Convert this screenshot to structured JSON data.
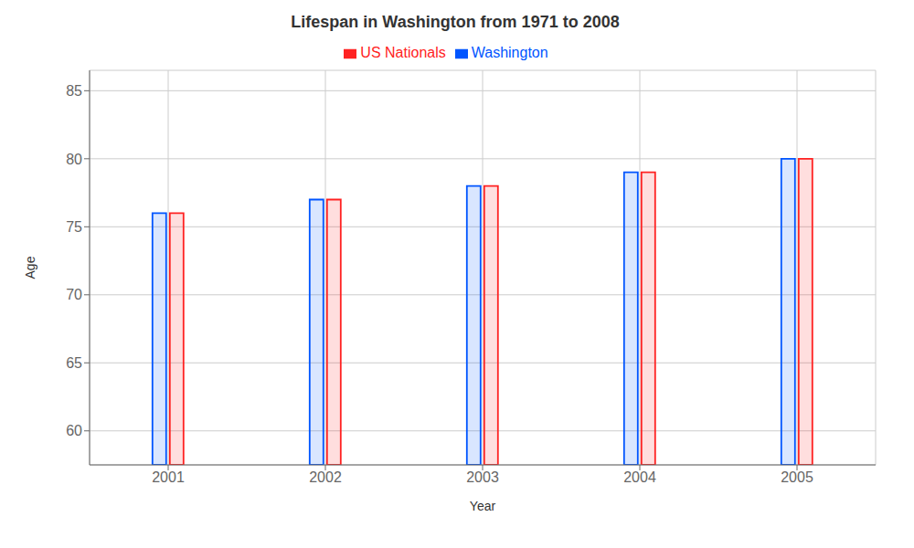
{
  "chart_data": {
    "type": "bar",
    "title": "Lifespan in Washington from 1971 to 2008",
    "xlabel": "Year",
    "ylabel": "Age",
    "categories": [
      "2001",
      "2002",
      "2003",
      "2004",
      "2005"
    ],
    "series": [
      {
        "name": "Washington",
        "color": "#0055ff",
        "values": [
          76.0,
          77.0,
          78.0,
          79.0,
          80.0
        ]
      },
      {
        "name": "US Nationals",
        "color": "#ff2222",
        "values": [
          76.0,
          77.0,
          78.0,
          79.0,
          80.0
        ]
      }
    ],
    "ylim": [
      57.5,
      86.5
    ],
    "yticks": [
      60,
      65,
      70,
      75,
      80,
      85
    ],
    "grid": true,
    "legend": "top"
  }
}
